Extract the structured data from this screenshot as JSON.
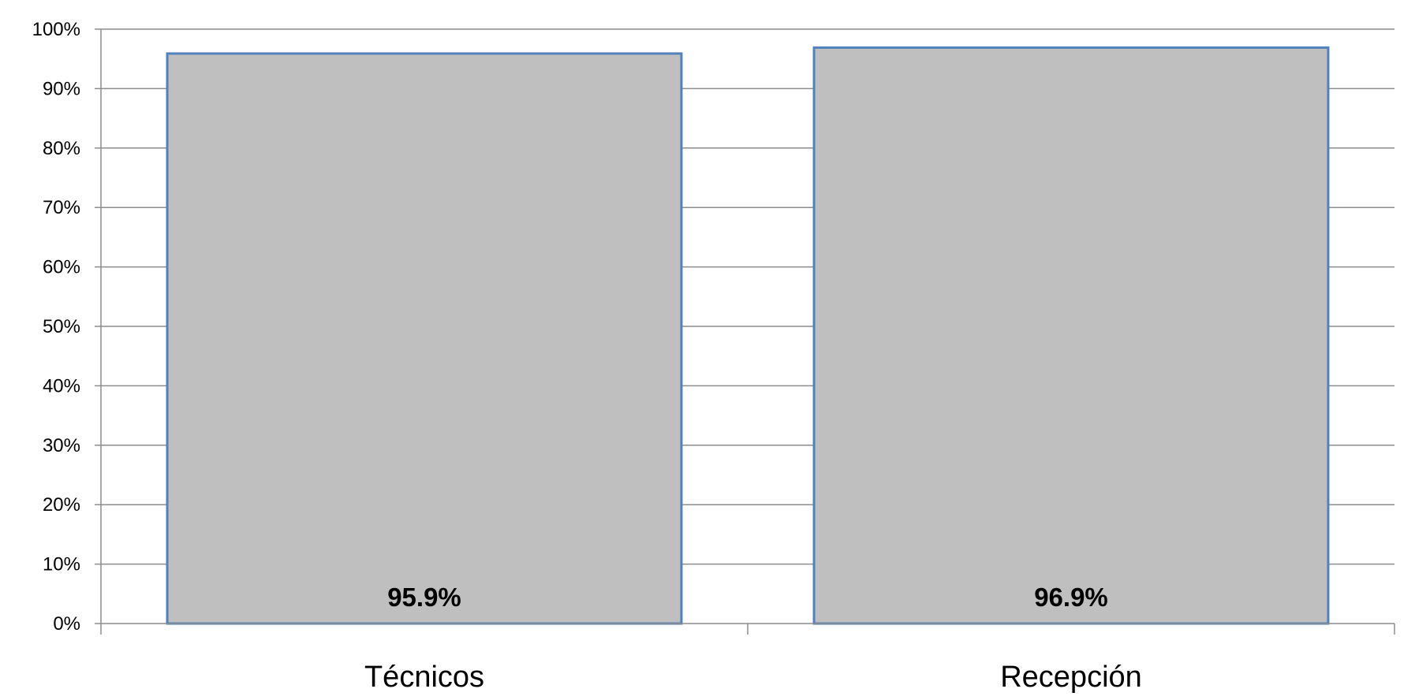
{
  "chart_data": {
    "type": "bar",
    "title": "",
    "xlabel": "",
    "ylabel": "",
    "categories": [
      "Técnicos",
      "Recepción"
    ],
    "values": [
      95.9,
      96.9
    ],
    "data_labels": [
      "95.9%",
      "96.9%"
    ],
    "ylim": [
      0,
      100
    ],
    "yticks": [
      0,
      10,
      20,
      30,
      40,
      50,
      60,
      70,
      80,
      90,
      100
    ],
    "ytick_labels": [
      "0%",
      "10%",
      "20%",
      "30%",
      "40%",
      "50%",
      "60%",
      "70%",
      "80%",
      "90%",
      "100%"
    ],
    "grid": true,
    "legend": "none",
    "colors": {
      "bar_fill": "#bfbfbf",
      "bar_stroke": "#4f81bd",
      "grid": "#8c8c8c",
      "axis": "#8c8c8c"
    }
  }
}
